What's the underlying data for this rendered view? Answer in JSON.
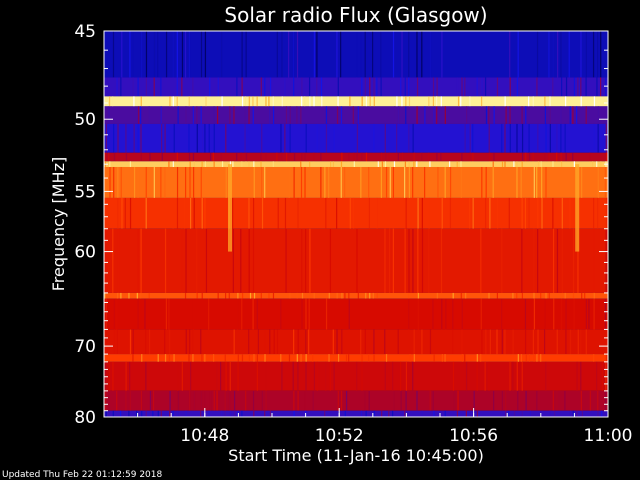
{
  "chart_data": {
    "type": "heatmap",
    "title": "Solar radio Flux (Glasgow)",
    "xlabel": "Start Time (11-Jan-16 10:45:00)",
    "ylabel": "Frequency [MHz]",
    "x_ticks": [
      "10:48",
      "10:52",
      "10:56",
      "11:00"
    ],
    "x_range": [
      "10:45",
      "11:00"
    ],
    "y_ticks": [
      45,
      50,
      55,
      60,
      70,
      80
    ],
    "y_range": [
      45,
      80
    ],
    "y_scale": "reciprocal",
    "colormap": "blue-red-yellow-white",
    "bands": [
      {
        "from": 45,
        "to": 47.5,
        "level": 0.12
      },
      {
        "from": 47.5,
        "to": 48.6,
        "level": 0.22
      },
      {
        "from": 48.6,
        "to": 49.2,
        "level": 0.95
      },
      {
        "from": 49.2,
        "to": 50.3,
        "level": 0.25
      },
      {
        "from": 50.3,
        "to": 52.2,
        "level": 0.2
      },
      {
        "from": 52.2,
        "to": 52.8,
        "level": 0.45
      },
      {
        "from": 52.8,
        "to": 53.2,
        "level": 0.9
      },
      {
        "from": 53.2,
        "to": 55.5,
        "level": 0.78
      },
      {
        "from": 55.5,
        "to": 58,
        "level": 0.68
      },
      {
        "from": 58,
        "to": 64,
        "level": 0.6
      },
      {
        "from": 64,
        "to": 64.6,
        "level": 0.75
      },
      {
        "from": 64.6,
        "to": 68,
        "level": 0.55
      },
      {
        "from": 68,
        "to": 71,
        "level": 0.58
      },
      {
        "from": 71,
        "to": 72,
        "level": 0.72
      },
      {
        "from": 72,
        "to": 76,
        "level": 0.52
      },
      {
        "from": 76,
        "to": 79,
        "level": 0.42
      },
      {
        "from": 79,
        "to": 80,
        "level": 0.22
      }
    ],
    "events": [
      {
        "time": "10:48:45",
        "freq_from": 53,
        "freq_to": 60,
        "level": 0.85
      },
      {
        "time": "10:59:05",
        "freq_from": 53,
        "freq_to": 60,
        "level": 0.85
      }
    ]
  },
  "footer": {
    "updated": "Updated Thu Feb 22 01:12:59 2018"
  },
  "colors": {
    "background": "#000000",
    "foreground": "#ffffff"
  }
}
